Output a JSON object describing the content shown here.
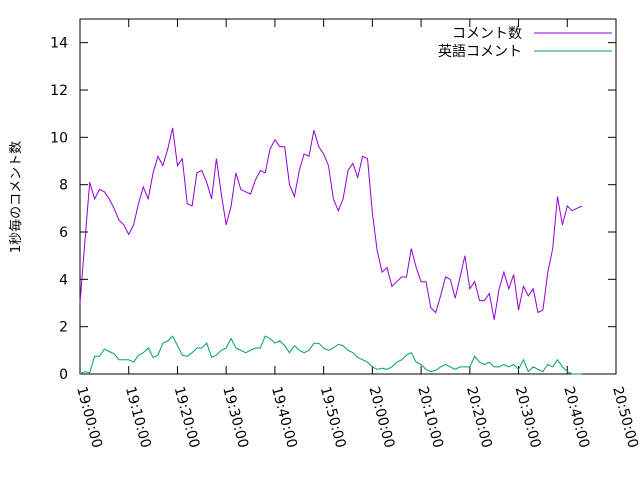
{
  "chart_data": {
    "type": "line",
    "title": "",
    "xlabel": "",
    "ylabel": "1秒毎のコメント数",
    "ylim": [
      0,
      15
    ],
    "yticks": [
      0,
      2,
      4,
      6,
      8,
      10,
      12,
      14
    ],
    "xlim": [
      "19:00:00",
      "20:50:00"
    ],
    "xtick_labels": [
      "19:00:00",
      "19:10:00",
      "19:20:00",
      "19:30:00",
      "19:40:00",
      "19:50:00",
      "20:00:00",
      "20:10:00",
      "20:20:00",
      "20:30:00",
      "20:40:00",
      "20:50:00"
    ],
    "grid": false,
    "legend_position": "top-right",
    "x": [
      "19:00:00",
      "19:01:00",
      "19:02:00",
      "19:03:00",
      "19:04:00",
      "19:05:00",
      "19:06:00",
      "19:07:00",
      "19:08:00",
      "19:09:00",
      "19:10:00",
      "19:11:00",
      "19:12:00",
      "19:13:00",
      "19:14:00",
      "19:15:00",
      "19:16:00",
      "19:17:00",
      "19:18:00",
      "19:19:00",
      "19:20:00",
      "19:21:00",
      "19:22:00",
      "19:23:00",
      "19:24:00",
      "19:25:00",
      "19:26:00",
      "19:27:00",
      "19:28:00",
      "19:29:00",
      "19:30:00",
      "19:31:00",
      "19:32:00",
      "19:33:00",
      "19:34:00",
      "19:35:00",
      "19:36:00",
      "19:37:00",
      "19:38:00",
      "19:39:00",
      "19:40:00",
      "19:41:00",
      "19:42:00",
      "19:43:00",
      "19:44:00",
      "19:45:00",
      "19:46:00",
      "19:47:00",
      "19:48:00",
      "19:49:00",
      "19:50:00",
      "19:51:00",
      "19:52:00",
      "19:53:00",
      "19:54:00",
      "19:55:00",
      "19:56:00",
      "19:57:00",
      "19:58:00",
      "19:59:00",
      "20:00:00",
      "20:01:00",
      "20:02:00",
      "20:03:00",
      "20:04:00",
      "20:05:00",
      "20:06:00",
      "20:07:00",
      "20:08:00",
      "20:09:00",
      "20:10:00",
      "20:11:00",
      "20:12:00",
      "20:13:00",
      "20:14:00",
      "20:15:00",
      "20:16:00",
      "20:17:00",
      "20:18:00",
      "20:19:00",
      "20:20:00",
      "20:21:00",
      "20:22:00",
      "20:23:00",
      "20:24:00",
      "20:25:00",
      "20:26:00",
      "20:27:00",
      "20:28:00",
      "20:29:00",
      "20:30:00",
      "20:31:00",
      "20:32:00",
      "20:33:00",
      "20:34:00",
      "20:35:00",
      "20:36:00",
      "20:37:00",
      "20:38:00",
      "20:39:00",
      "20:40:00",
      "20:41:00",
      "20:42:00",
      "20:43:00"
    ],
    "series": [
      {
        "name": "コメント数",
        "color": "#9400d3",
        "values": [
          3.0,
          5.6,
          8.1,
          7.4,
          7.8,
          7.7,
          7.4,
          7.0,
          6.5,
          6.3,
          5.9,
          6.3,
          7.2,
          7.9,
          7.4,
          8.5,
          9.2,
          8.8,
          9.5,
          10.4,
          8.8,
          9.1,
          7.2,
          7.1,
          8.5,
          8.6,
          8.1,
          7.4,
          9.1,
          7.6,
          6.3,
          7.1,
          8.5,
          7.8,
          7.7,
          7.6,
          8.2,
          8.6,
          8.5,
          9.5,
          9.9,
          9.6,
          9.6,
          8.0,
          7.5,
          8.6,
          9.3,
          9.2,
          10.3,
          9.6,
          9.3,
          8.8,
          7.4,
          6.9,
          7.4,
          8.6,
          8.9,
          8.3,
          9.2,
          9.1,
          6.8,
          5.2,
          4.3,
          4.5,
          3.7,
          3.9,
          4.1,
          4.1,
          5.3,
          4.5,
          3.9,
          3.9,
          2.8,
          2.6,
          3.3,
          4.1,
          4.0,
          3.2,
          4.1,
          5.0,
          3.6,
          3.9,
          3.1,
          3.1,
          3.4,
          2.3,
          3.6,
          4.3,
          3.6,
          4.2,
          2.7,
          3.7,
          3.3,
          3.6,
          2.6,
          2.7,
          4.3,
          5.3,
          7.5,
          6.3,
          7.1,
          6.9,
          7.0,
          7.1
        ]
      },
      {
        "name": "英語コメント",
        "color": "#009e73",
        "values": [
          0.0,
          0.1,
          0.05,
          0.75,
          0.75,
          1.05,
          0.95,
          0.85,
          0.6,
          0.6,
          0.6,
          0.5,
          0.8,
          0.9,
          1.1,
          0.7,
          0.8,
          1.3,
          1.4,
          1.6,
          1.2,
          0.8,
          0.75,
          0.9,
          1.1,
          1.1,
          1.3,
          0.7,
          0.8,
          1.0,
          1.1,
          1.5,
          1.1,
          1.0,
          0.9,
          1.0,
          1.1,
          1.1,
          1.6,
          1.5,
          1.3,
          1.4,
          1.2,
          0.9,
          1.2,
          1.0,
          0.9,
          1.0,
          1.3,
          1.3,
          1.1,
          1.0,
          1.1,
          1.25,
          1.2,
          1.0,
          0.9,
          0.7,
          0.6,
          0.5,
          0.3,
          0.2,
          0.25,
          0.2,
          0.3,
          0.5,
          0.6,
          0.8,
          0.9,
          0.5,
          0.4,
          0.2,
          0.1,
          0.15,
          0.3,
          0.4,
          0.3,
          0.2,
          0.3,
          0.3,
          0.3,
          0.75,
          0.5,
          0.4,
          0.5,
          0.3,
          0.3,
          0.4,
          0.3,
          0.4,
          0.2,
          0.6,
          0.1,
          0.3,
          0.2,
          0.1,
          0.4,
          0.3,
          0.6,
          0.3,
          0.1,
          0.0,
          0.0,
          0.0
        ]
      }
    ]
  }
}
